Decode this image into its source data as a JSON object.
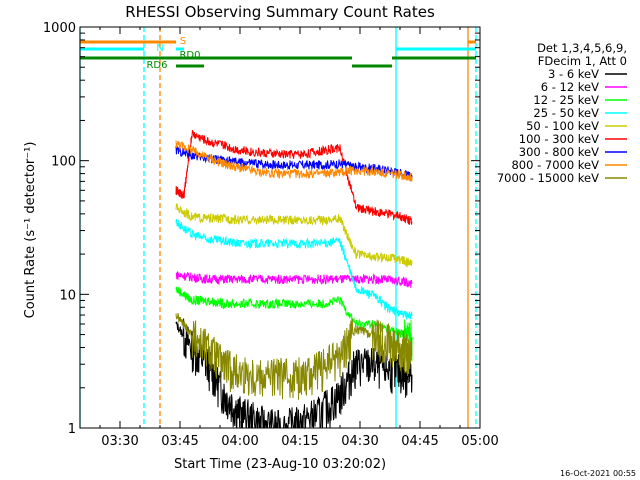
{
  "chart_data": {
    "type": "line",
    "title": "RHESSI Observing Summary Count Rates",
    "xlabel": "Start Time (23-Aug-10 03:20:02)",
    "ylabel": "Count Rate (s⁻¹ detector⁻¹)",
    "y_scale": "log",
    "ylim": [
      1,
      1000
    ],
    "xlim_minutes_after_0320": [
      0,
      100
    ],
    "x_ticks": [
      "03:30",
      "03:45",
      "04:00",
      "04:15",
      "04:30",
      "04:45",
      "05:00"
    ],
    "y_ticks": [
      "1",
      "10",
      "100",
      "1000"
    ],
    "legend_header": [
      "Det 1,3,4,5,6,9,",
      "FDecim 1, Att 0"
    ],
    "legend_placement": "right",
    "footer": "16-Oct-2021 00:55",
    "series": [
      {
        "name": "3 - 6 keV",
        "color": "#000000",
        "x": [
          "03:44",
          "03:48",
          "03:52",
          "03:56",
          "04:00",
          "04:05",
          "04:10",
          "04:15",
          "04:20",
          "04:25",
          "04:29",
          "04:33",
          "04:37",
          "04:41",
          "04:43"
        ],
        "y": [
          6,
          4,
          3,
          1.8,
          1.3,
          1.1,
          1.0,
          1.1,
          1.3,
          1.8,
          3,
          3,
          2.8,
          2.6,
          2.5
        ]
      },
      {
        "name": "6 - 12 keV",
        "color": "#ff00ff",
        "x": [
          "03:44",
          "03:48",
          "03:52",
          "03:56",
          "04:00",
          "04:05",
          "04:10",
          "04:15",
          "04:20",
          "04:25",
          "04:29",
          "04:33",
          "04:37",
          "04:41",
          "04:43"
        ],
        "y": [
          14,
          13.5,
          13,
          13,
          13,
          13,
          13,
          13,
          13,
          13,
          13,
          13,
          12.8,
          12.5,
          12
        ]
      },
      {
        "name": "12 - 25 keV",
        "color": "#00ff00",
        "x": [
          "03:44",
          "03:48",
          "03:52",
          "03:56",
          "04:00",
          "04:05",
          "04:10",
          "04:15",
          "04:20",
          "04:25",
          "04:29",
          "04:33",
          "04:37",
          "04:41",
          "04:43"
        ],
        "y": [
          11,
          9,
          9,
          8.5,
          8.5,
          8.5,
          8.5,
          8.5,
          8.5,
          9,
          6,
          6,
          5.5,
          5,
          4.8
        ]
      },
      {
        "name": "25 - 50 keV",
        "color": "#00ffff",
        "x": [
          "03:44",
          "03:48",
          "03:52",
          "03:56",
          "04:00",
          "04:05",
          "04:10",
          "04:15",
          "04:20",
          "04:25",
          "04:29",
          "04:33",
          "04:37",
          "04:41",
          "04:43"
        ],
        "y": [
          35,
          28,
          26,
          25,
          24,
          24,
          24,
          24,
          24,
          25,
          11,
          10,
          8,
          7,
          7
        ]
      },
      {
        "name": "50 - 100 keV",
        "color": "#cccc00",
        "x": [
          "03:44",
          "03:48",
          "03:52",
          "03:56",
          "04:00",
          "04:05",
          "04:10",
          "04:15",
          "04:20",
          "04:25",
          "04:29",
          "04:33",
          "04:37",
          "04:41",
          "04:43"
        ],
        "y": [
          45,
          38,
          37,
          37,
          36,
          36,
          36,
          36,
          36,
          37,
          20,
          19,
          19,
          18,
          17
        ]
      },
      {
        "name": "100 - 300 keV",
        "color": "#ff0000",
        "x": [
          "03:44",
          "03:46",
          "03:48",
          "03:52",
          "03:56",
          "04:00",
          "04:05",
          "04:10",
          "04:15",
          "04:20",
          "04:25",
          "04:29",
          "04:33",
          "04:37",
          "04:41",
          "04:43"
        ],
        "y": [
          60,
          55,
          160,
          140,
          130,
          120,
          115,
          112,
          112,
          118,
          125,
          45,
          42,
          40,
          38,
          35
        ]
      },
      {
        "name": "300 - 800 keV",
        "color": "#0000ff",
        "x": [
          "03:44",
          "03:48",
          "03:52",
          "03:56",
          "04:00",
          "04:05",
          "04:10",
          "04:15",
          "04:20",
          "04:25",
          "04:29",
          "04:33",
          "04:37",
          "04:41",
          "04:43"
        ],
        "y": [
          120,
          110,
          105,
          100,
          97,
          95,
          93,
          93,
          93,
          95,
          90,
          88,
          85,
          80,
          75
        ]
      },
      {
        "name": "800 - 7000 keV",
        "color": "#ff8800",
        "x": [
          "03:44",
          "03:48",
          "03:52",
          "03:56",
          "04:00",
          "04:05",
          "04:10",
          "04:15",
          "04:20",
          "04:25",
          "04:29",
          "04:33",
          "04:37",
          "04:41",
          "04:43"
        ],
        "y": [
          135,
          120,
          105,
          95,
          88,
          82,
          80,
          80,
          80,
          82,
          85,
          83,
          80,
          78,
          75
        ]
      },
      {
        "name": "7000 - 15000 keV",
        "color": "#888800",
        "x": [
          "03:44",
          "03:48",
          "03:52",
          "03:56",
          "04:00",
          "04:05",
          "04:10",
          "04:15",
          "04:20",
          "04:25",
          "04:29",
          "04:33",
          "04:37",
          "04:41",
          "04:43"
        ],
        "y": [
          7,
          5,
          4,
          3,
          2.6,
          2.5,
          2.5,
          2.5,
          2.8,
          3.5,
          5.5,
          5,
          4.5,
          4,
          3.5
        ]
      }
    ],
    "flag_bars": [
      {
        "label": "S",
        "color": "#ff8800",
        "segments": [
          [
            "03:20",
            "03:44"
          ],
          [
            "04:57",
            "04:59"
          ]
        ]
      },
      {
        "label": "N",
        "color": "#00ffff",
        "segments": [
          [
            "03:20",
            "03:36"
          ],
          [
            "03:44",
            "03:46"
          ],
          [
            "04:39",
            "04:59"
          ]
        ]
      },
      {
        "label": "RD0",
        "color": "#008800",
        "segments": [
          [
            "03:44",
            "04:28"
          ],
          [
            "04:28",
            "04:38"
          ],
          [
            "04:38",
            "04:59"
          ]
        ]
      },
      {
        "label": "RD6",
        "color": "#008800",
        "segments": [
          [
            "03:20",
            "03:44"
          ],
          [
            "03:44",
            "03:51"
          ]
        ]
      }
    ],
    "vertical_lines": [
      {
        "x": "03:20",
        "color": "#00ffff",
        "style": "solid"
      },
      {
        "x": "03:36",
        "color": "#00ffff",
        "style": "dashed"
      },
      {
        "x": "03:40",
        "color": "#ff8800",
        "style": "dashed"
      },
      {
        "x": "04:39",
        "color": "#00ffff",
        "style": "solid"
      },
      {
        "x": "04:57",
        "color": "#ff8800",
        "style": "solid"
      },
      {
        "x": "04:59",
        "color": "#00ffff",
        "style": "dashed"
      }
    ]
  }
}
